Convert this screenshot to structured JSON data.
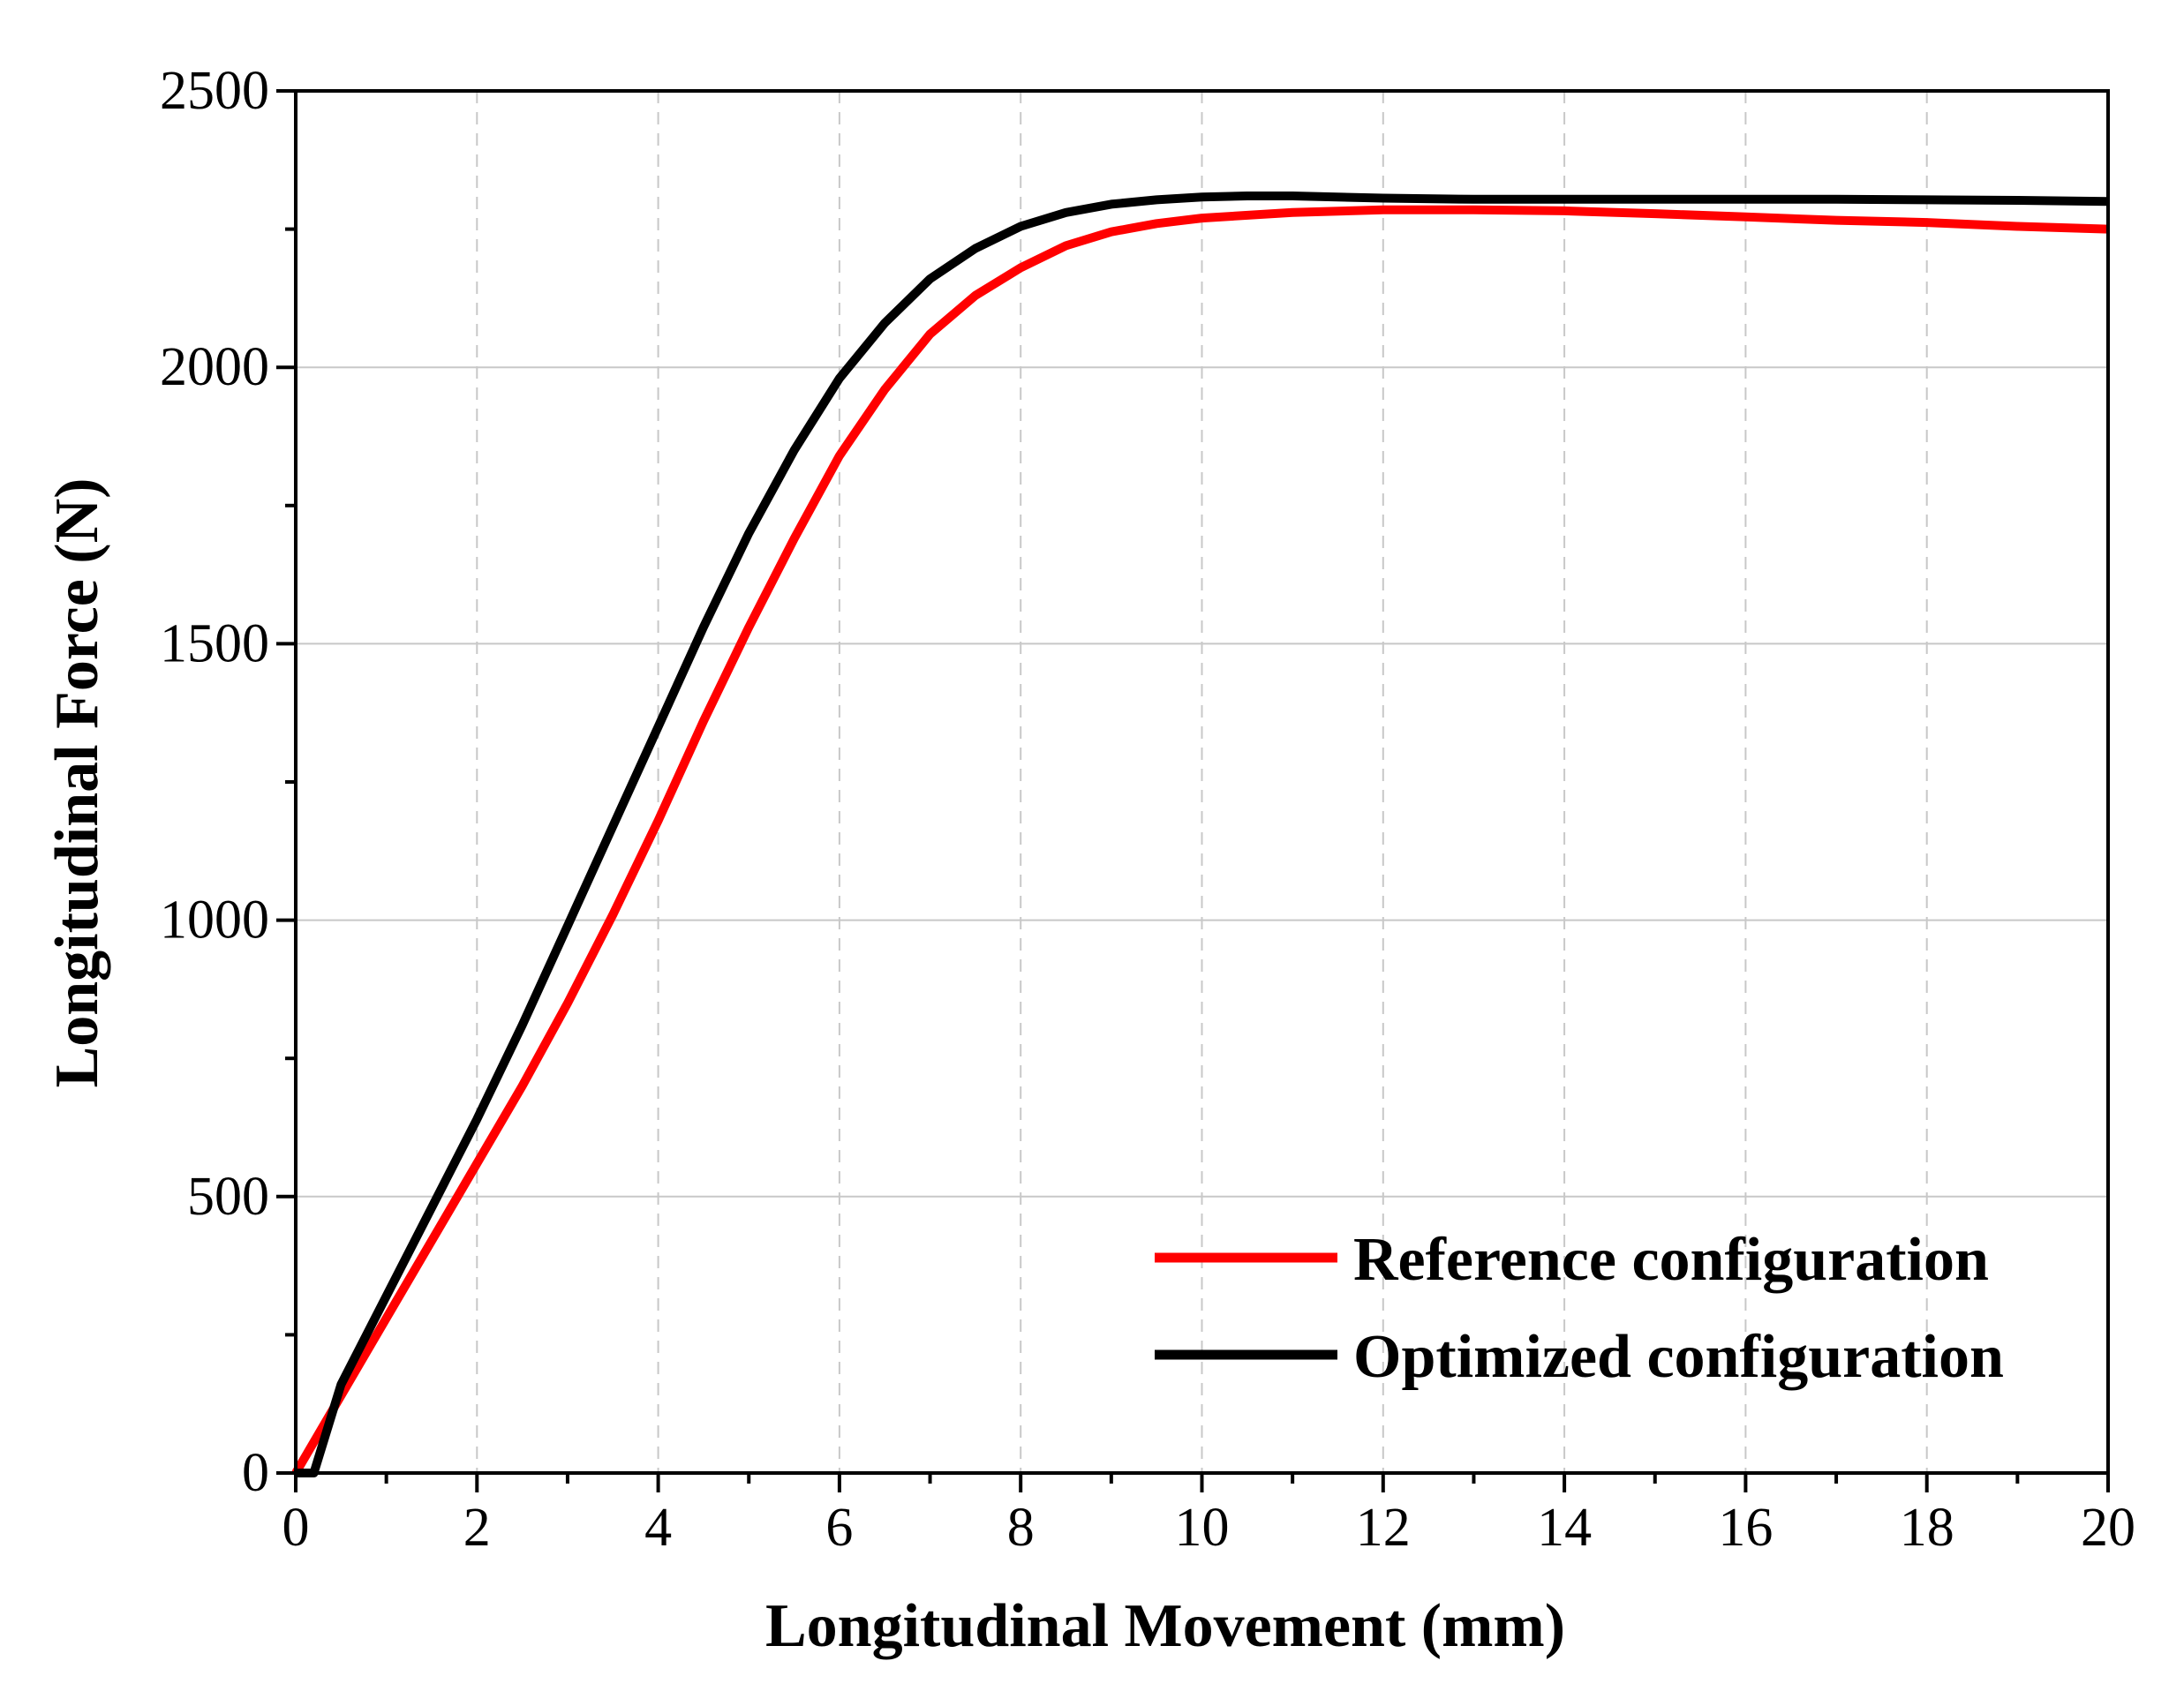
{
  "chart_data": {
    "type": "line",
    "title": "",
    "xlabel": "Longitudinal Movement (mm)",
    "ylabel": "Longitudinal Force (N)",
    "xlim": [
      0,
      20
    ],
    "ylim": [
      0,
      2500
    ],
    "xticks": [
      0,
      2,
      4,
      6,
      8,
      10,
      12,
      14,
      16,
      18,
      20
    ],
    "yticks": [
      0,
      500,
      1000,
      1500,
      2000,
      2500
    ],
    "xtick_labels": [
      "0",
      "2",
      "4",
      "6",
      "8",
      "10",
      "12",
      "14",
      "16",
      "18",
      "20"
    ],
    "ytick_labels": [
      "0",
      "500",
      "1000",
      "1500",
      "2000",
      "2500"
    ],
    "grid": true,
    "legend_position": "bottom-right",
    "series": [
      {
        "name": "Reference configuration",
        "color": "#ff0000",
        "x": [
          0,
          0.5,
          1,
          1.5,
          2,
          2.5,
          3,
          3.5,
          4,
          4.5,
          5,
          5.5,
          6,
          6.5,
          7,
          7.5,
          8,
          8.5,
          9,
          9.5,
          10,
          11,
          12,
          13,
          14,
          15,
          16,
          17,
          18,
          19,
          20
        ],
        "y": [
          0,
          140,
          280,
          420,
          560,
          700,
          850,
          1010,
          1180,
          1360,
          1530,
          1690,
          1840,
          1960,
          2060,
          2130,
          2180,
          2220,
          2245,
          2260,
          2270,
          2280,
          2285,
          2285,
          2283,
          2278,
          2272,
          2266,
          2262,
          2255,
          2250
        ]
      },
      {
        "name": "Optimized configuration",
        "color": "#000000",
        "x": [
          0,
          0.2,
          0.5,
          1,
          1.5,
          2,
          2.5,
          3,
          3.5,
          4,
          4.5,
          5,
          5.5,
          6,
          6.5,
          7,
          7.5,
          8,
          8.5,
          9,
          9.5,
          10,
          10.5,
          11,
          12,
          13,
          14,
          15,
          16,
          17,
          18,
          19,
          20
        ],
        "y": [
          0,
          0,
          160,
          320,
          480,
          640,
          810,
          990,
          1170,
          1350,
          1530,
          1700,
          1850,
          1980,
          2080,
          2160,
          2215,
          2255,
          2280,
          2295,
          2303,
          2308,
          2310,
          2310,
          2306,
          2304,
          2304,
          2304,
          2304,
          2304,
          2303,
          2302,
          2300
        ]
      }
    ]
  }
}
